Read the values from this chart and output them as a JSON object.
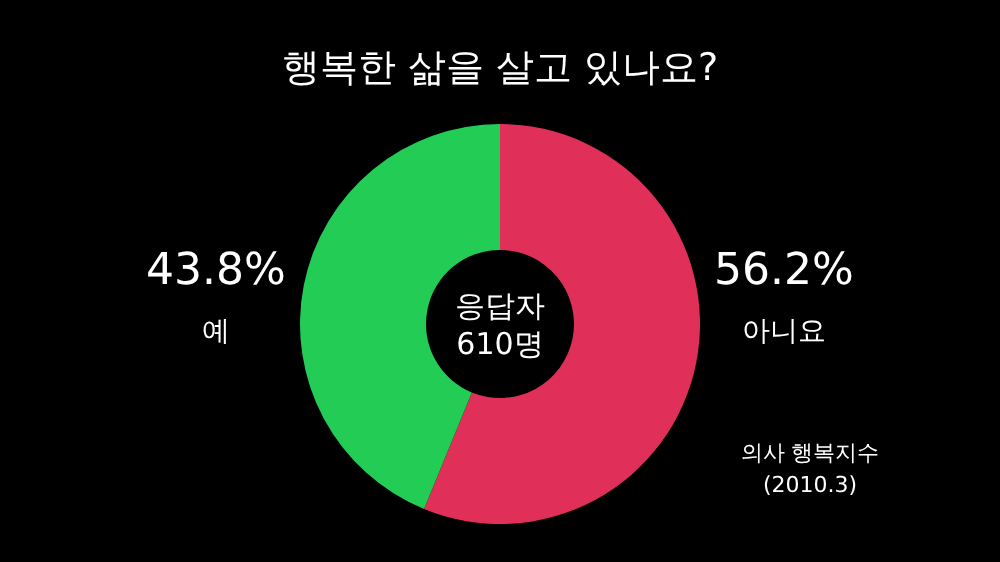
{
  "chart_data": {
    "type": "donut",
    "title": "행복한 삶을 살고 있나요?",
    "categories": [
      "아니요",
      "예"
    ],
    "values": [
      56.2,
      43.8
    ],
    "colors": [
      "#e0305a",
      "#22cc55"
    ],
    "value_labels": [
      "56.2%",
      "43.8%"
    ],
    "annotations": [
      "응답자 610명",
      "의사 행복지수",
      "(2010.3)"
    ]
  }
}
